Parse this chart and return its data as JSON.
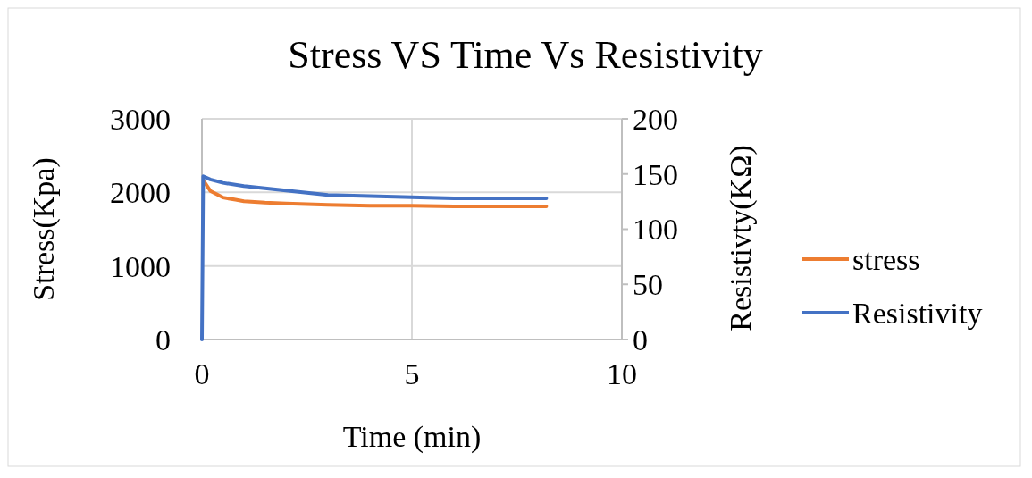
{
  "chart_data": {
    "type": "line",
    "title": "Stress VS Time Vs Resistivity",
    "xlabel": "Time (min)",
    "ylabel": "Stress(Kpa)",
    "y2label": "Resistivty(KΩ)",
    "xlim": [
      0,
      10
    ],
    "xticks": [
      0,
      5,
      10
    ],
    "ylim": [
      0,
      3000
    ],
    "yticks": [
      0,
      1000,
      2000,
      3000
    ],
    "y2lim": [
      0,
      200
    ],
    "y2ticks": [
      0,
      50,
      100,
      150,
      200
    ],
    "grid": true,
    "legend": "right",
    "marker": "none",
    "series": [
      {
        "name": "stress",
        "color": "#ed7d31",
        "x": [
          0.05,
          0.2,
          0.5,
          0.8,
          1,
          1.5,
          2,
          3,
          4,
          5,
          6,
          7,
          8.2
        ],
        "values": [
          2150,
          2020,
          1930,
          1900,
          1880,
          1860,
          1850,
          1830,
          1820,
          1820,
          1810,
          1810,
          1810
        ]
      },
      {
        "name": "Resistivity",
        "color": "#4472c4",
        "axis": "y2",
        "x": [
          0,
          0.03,
          0.2,
          0.5,
          1,
          1.5,
          2,
          3,
          4,
          5,
          6,
          7,
          8.2
        ],
        "values": [
          0,
          148,
          145,
          142,
          139,
          137,
          135,
          131,
          130,
          129,
          128,
          128,
          128
        ]
      }
    ]
  }
}
